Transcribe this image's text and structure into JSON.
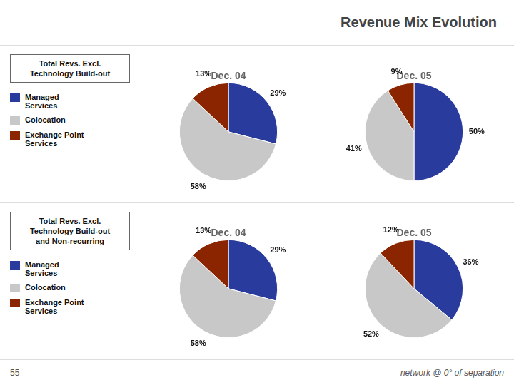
{
  "title": "Revenue Mix Evolution",
  "annotations": [
    "Total Revs. Excl.\nTechnology Build-out",
    "Total Revs. Excl.\nTechnology Build-out\nand Non-recurring",
    "55",
    "network @ 0° of separation"
  ],
  "chart_data": [
    {
      "type": "pie",
      "title": "Dec. 04",
      "categories": [
        "Managed\nServices",
        "Colocation",
        "Exchange Point\nServices"
      ],
      "values": [
        29,
        58,
        13
      ],
      "value_labels": [
        "29%",
        "58%",
        "13%"
      ],
      "colors": [
        "#2a3b9e",
        "#c8c8c8",
        "#8b2500"
      ],
      "data_labels": true,
      "legend": "left"
    },
    {
      "type": "pie",
      "title": "Dec. 05",
      "categories": [
        "Managed\nServices",
        "Colocation",
        "Exchange Point\nServices"
      ],
      "values": [
        50,
        41,
        9
      ],
      "value_labels": [
        "50%",
        "41%",
        "9%"
      ],
      "colors": [
        "#2a3b9e",
        "#c8c8c8",
        "#8b2500"
      ],
      "data_labels": true
    },
    {
      "type": "pie",
      "title": "Dec. 04",
      "categories": [
        "Managed\nServices",
        "Colocation",
        "Exchange Point\nServices"
      ],
      "values": [
        29,
        58,
        13
      ],
      "value_labels": [
        "29%",
        "58%",
        "13%"
      ],
      "colors": [
        "#2a3b9e",
        "#c8c8c8",
        "#8b2500"
      ],
      "data_labels": true,
      "legend": "left"
    },
    {
      "type": "pie",
      "title": "Dec. 05",
      "categories": [
        "Managed\nServices",
        "Colocation",
        "Exchange Point\nServices"
      ],
      "values": [
        36,
        52,
        12
      ],
      "value_labels": [
        "36%",
        "52%",
        "12%"
      ],
      "colors": [
        "#2a3b9e",
        "#c8c8c8",
        "#8b2500"
      ],
      "data_labels": true
    }
  ]
}
